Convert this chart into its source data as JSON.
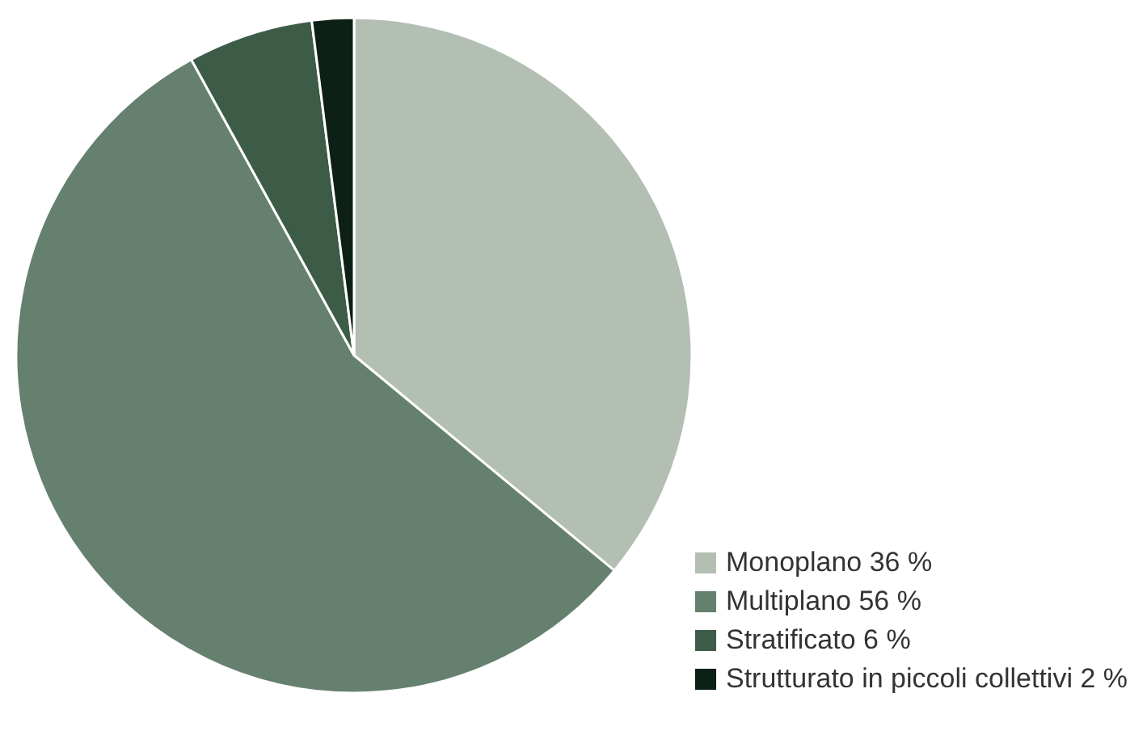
{
  "chart_data": {
    "type": "pie",
    "categories": [
      "Monoplano",
      "Multiplano",
      "Stratificato",
      "Strutturato in piccoli collettivi"
    ],
    "values": [
      36,
      56,
      6,
      2
    ],
    "colors": [
      "#b4bfb3",
      "#66806f",
      "#3d5c48",
      "#0d2016"
    ],
    "value_labels": [
      "36 %",
      "56 %",
      "6 %",
      "2 %"
    ],
    "legend": "bottom right"
  }
}
